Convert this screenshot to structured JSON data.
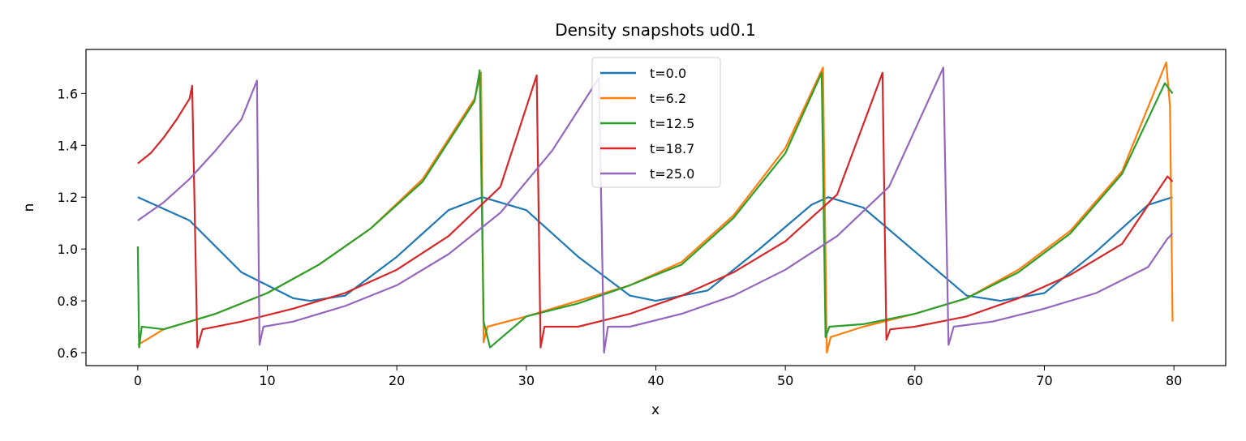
{
  "chart_data": {
    "type": "line",
    "title": "Density snapshots  ud0.1",
    "xlabel": "x",
    "ylabel": "n",
    "xlim": [
      -4,
      84
    ],
    "ylim": [
      0.55,
      1.77
    ],
    "x_ticks": [
      0,
      10,
      20,
      30,
      40,
      50,
      60,
      70,
      80
    ],
    "x_tick_labels": [
      "0",
      "10",
      "20",
      "30",
      "40",
      "50",
      "60",
      "70",
      "80"
    ],
    "y_ticks": [
      0.6,
      0.8,
      1.0,
      1.2,
      1.4,
      1.6
    ],
    "y_tick_labels": [
      "0.6",
      "0.8",
      "1.0",
      "1.2",
      "1.4",
      "1.6"
    ],
    "grid": false,
    "legend_position": "upper-center",
    "series": [
      {
        "name": "t=0.0",
        "color": "#1f77b4",
        "x": [
          0,
          4,
          8,
          12,
          13.3,
          16,
          20,
          24,
          26.6,
          30,
          34,
          38,
          40,
          44,
          48,
          52,
          53.3,
          56,
          60,
          64,
          66.6,
          70,
          74,
          78,
          79.9
        ],
        "y": [
          1.2,
          1.11,
          0.91,
          0.81,
          0.8,
          0.82,
          0.97,
          1.15,
          1.2,
          1.15,
          0.97,
          0.82,
          0.8,
          0.84,
          1.0,
          1.17,
          1.2,
          1.16,
          0.99,
          0.82,
          0.8,
          0.83,
          0.99,
          1.17,
          1.2
        ]
      },
      {
        "name": "t=6.2",
        "color": "#ff7f0e",
        "x": [
          0,
          2,
          6,
          10,
          14,
          18,
          22,
          26,
          26.5,
          26.7,
          27,
          30,
          34,
          38,
          42,
          46,
          50,
          52.9,
          53.2,
          53.5,
          56,
          60,
          64,
          68,
          72,
          76,
          79.4,
          79.7,
          79.9
        ],
        "y": [
          0.63,
          0.69,
          0.75,
          0.83,
          0.94,
          1.08,
          1.27,
          1.58,
          1.68,
          0.64,
          0.7,
          0.74,
          0.8,
          0.86,
          0.95,
          1.13,
          1.39,
          1.7,
          0.6,
          0.66,
          0.7,
          0.75,
          0.81,
          0.92,
          1.07,
          1.3,
          1.72,
          1.55,
          0.72
        ]
      },
      {
        "name": "t=12.5",
        "color": "#2ca02c",
        "x": [
          0,
          0.1,
          0.3,
          2,
          6,
          10,
          14,
          18,
          22,
          26,
          26.4,
          26.7,
          27.2,
          30,
          34,
          38,
          42,
          46,
          50,
          52.8,
          53.1,
          53.4,
          56,
          60,
          64,
          68,
          72,
          76,
          79.3,
          79.9
        ],
        "y": [
          1.01,
          0.62,
          0.7,
          0.69,
          0.75,
          0.83,
          0.94,
          1.08,
          1.26,
          1.57,
          1.69,
          0.72,
          0.62,
          0.74,
          0.79,
          0.86,
          0.94,
          1.12,
          1.37,
          1.68,
          0.66,
          0.7,
          0.71,
          0.75,
          0.81,
          0.91,
          1.06,
          1.29,
          1.64,
          1.6
        ]
      },
      {
        "name": "t=18.7",
        "color": "#d62728",
        "x": [
          0,
          1,
          2,
          3,
          4,
          4.2,
          4.6,
          5,
          8,
          12,
          16,
          20,
          24,
          28,
          30.8,
          31.1,
          31.4,
          34,
          38,
          42,
          46,
          50,
          54,
          57.5,
          57.8,
          58.1,
          60,
          64,
          68,
          72,
          76,
          79.5,
          79.9
        ],
        "y": [
          1.33,
          1.37,
          1.43,
          1.5,
          1.58,
          1.63,
          0.62,
          0.69,
          0.72,
          0.77,
          0.83,
          0.92,
          1.05,
          1.24,
          1.67,
          0.62,
          0.7,
          0.7,
          0.75,
          0.82,
          0.91,
          1.03,
          1.21,
          1.68,
          0.65,
          0.69,
          0.7,
          0.74,
          0.81,
          0.9,
          1.02,
          1.28,
          1.26
        ]
      },
      {
        "name": "t=25.0",
        "color": "#9467bd",
        "x": [
          0,
          2,
          4,
          6,
          8,
          9.2,
          9.4,
          9.7,
          12,
          16,
          20,
          24,
          28,
          32,
          35.6,
          36,
          36.3,
          38,
          42,
          46,
          50,
          54,
          58,
          62.2,
          62.6,
          63,
          66,
          70,
          74,
          78,
          79.5,
          79.9
        ],
        "y": [
          1.11,
          1.18,
          1.27,
          1.38,
          1.5,
          1.65,
          0.63,
          0.7,
          0.72,
          0.78,
          0.86,
          0.98,
          1.14,
          1.38,
          1.66,
          0.6,
          0.7,
          0.7,
          0.75,
          0.82,
          0.92,
          1.05,
          1.24,
          1.7,
          0.63,
          0.7,
          0.72,
          0.77,
          0.83,
          0.93,
          1.04,
          1.06
        ]
      }
    ]
  }
}
